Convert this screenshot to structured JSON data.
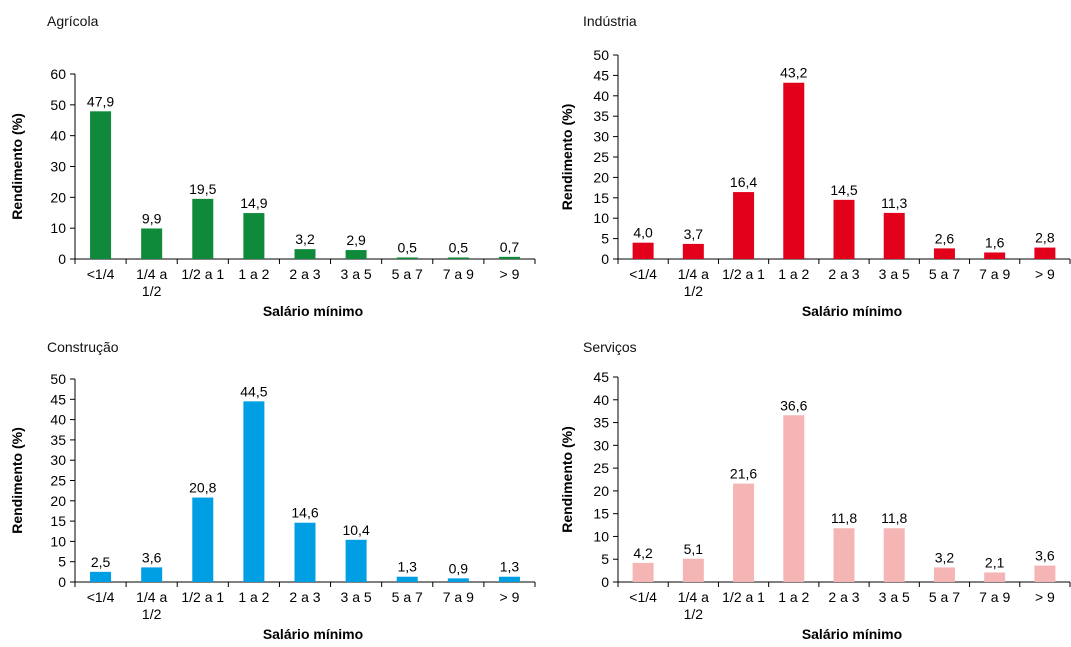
{
  "chart_data": [
    {
      "type": "bar",
      "title": "Agrícola",
      "xlabel": "Salário mínimo",
      "ylabel": "Rendimento (%)",
      "ylim": [
        0,
        60
      ],
      "yticks": [
        0,
        10,
        20,
        30,
        40,
        50,
        60
      ],
      "color": "#0e8a3a",
      "categories": [
        [
          "<1/4"
        ],
        [
          "1/4 a",
          "1/2"
        ],
        [
          "1/2 a 1"
        ],
        [
          "1 a 2"
        ],
        [
          "2 a 3"
        ],
        [
          "3 a 5"
        ],
        [
          "5 a 7"
        ],
        [
          "7 a 9"
        ],
        [
          "> 9"
        ]
      ],
      "values": [
        47.9,
        9.9,
        19.5,
        14.9,
        3.2,
        2.9,
        0.5,
        0.5,
        0.7
      ],
      "value_labels": [
        "47,9",
        "9,9",
        "19,5",
        "14,9",
        "3,2",
        "2,9",
        "0,5",
        "0,5",
        "0,7"
      ],
      "grid": false
    },
    {
      "type": "bar",
      "title": "Indústria",
      "xlabel": "Salário mínimo",
      "ylabel": "Rendimento (%)",
      "ylim": [
        0,
        50
      ],
      "yticks": [
        0,
        5,
        10,
        15,
        20,
        25,
        30,
        35,
        40,
        45,
        50
      ],
      "color": "#e2001a",
      "categories": [
        [
          "<1/4"
        ],
        [
          "1/4 a",
          "1/2"
        ],
        [
          "1/2 a 1"
        ],
        [
          "1 a 2"
        ],
        [
          "2 a 3"
        ],
        [
          "3 a 5"
        ],
        [
          "5 a 7"
        ],
        [
          "7 a 9"
        ],
        [
          "> 9"
        ]
      ],
      "values": [
        4.0,
        3.7,
        16.4,
        43.2,
        14.5,
        11.3,
        2.6,
        1.6,
        2.8
      ],
      "value_labels": [
        "4,0",
        "3,7",
        "16,4",
        "43,2",
        "14,5",
        "11,3",
        "2,6",
        "1,6",
        "2,8"
      ],
      "grid": false
    },
    {
      "type": "bar",
      "title": "Construção",
      "xlabel": "Salário mínimo",
      "ylabel": "Rendimento (%)",
      "ylim": [
        0,
        50
      ],
      "yticks": [
        0,
        5,
        10,
        15,
        20,
        25,
        30,
        35,
        40,
        45,
        50
      ],
      "color": "#009fe3",
      "categories": [
        [
          "<1/4"
        ],
        [
          "1/4 a",
          "1/2"
        ],
        [
          "1/2 a 1"
        ],
        [
          "1 a 2"
        ],
        [
          "2 a 3"
        ],
        [
          "3 a 5"
        ],
        [
          "5 a 7"
        ],
        [
          "7 a 9"
        ],
        [
          "> 9"
        ]
      ],
      "values": [
        2.5,
        3.6,
        20.8,
        44.5,
        14.6,
        10.4,
        1.3,
        0.9,
        1.3
      ],
      "value_labels": [
        "2,5",
        "3,6",
        "20,8",
        "44,5",
        "14,6",
        "10,4",
        "1,3",
        "0,9",
        "1,3"
      ],
      "grid": false
    },
    {
      "type": "bar",
      "title": "Serviços",
      "xlabel": "Salário mínimo",
      "ylabel": "Rendimento (%)",
      "ylim": [
        0,
        45
      ],
      "yticks": [
        0,
        5,
        10,
        15,
        20,
        25,
        30,
        35,
        40,
        45
      ],
      "color": "#f5b5b5",
      "categories": [
        [
          "<1/4"
        ],
        [
          "1/4 a",
          "1/2"
        ],
        [
          "1/2 a 1"
        ],
        [
          "1 a 2"
        ],
        [
          "2 a 3"
        ],
        [
          "3 a 5"
        ],
        [
          "5 a 7"
        ],
        [
          "7 a 9"
        ],
        [
          "> 9"
        ]
      ],
      "values": [
        4.2,
        5.1,
        21.6,
        36.6,
        11.8,
        11.8,
        3.2,
        2.1,
        3.6
      ],
      "value_labels": [
        "4,2",
        "5,1",
        "21,6",
        "36,6",
        "11,8",
        "11,8",
        "3,2",
        "2,1",
        "3,6"
      ],
      "grid": false
    }
  ]
}
